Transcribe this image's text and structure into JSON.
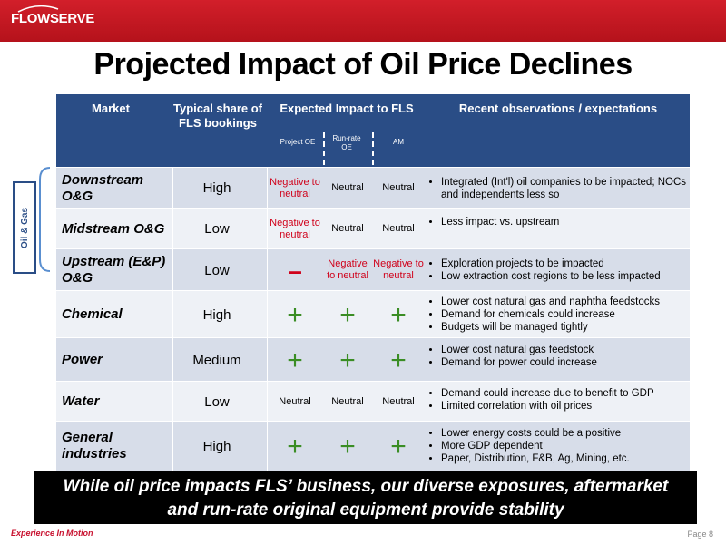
{
  "brand": {
    "logo": "FLOWSERVE",
    "tagline": "Experience In Motion",
    "page": "Page 8",
    "accent": "#c8102e",
    "header_blue": "#2a4d86",
    "positive_green": "#3a8d24"
  },
  "title": "Projected Impact of Oil Price Declines",
  "table": {
    "headers": {
      "market": "Market",
      "share": "Typical share of FLS bookings",
      "impact": "Expected Impact to FLS",
      "project_oe": "Project OE",
      "runrate_oe": "Run-rate OE",
      "am": "AM",
      "observations": "Recent observations / expectations"
    },
    "group_label": "Oil & Gas",
    "rows": [
      {
        "market": "Downstream O&G",
        "share": "High",
        "project_oe": "Negative to neutral",
        "runrate_oe": "Neutral",
        "am": "Neutral",
        "observations": [
          "Integrated (Int'l) oil companies to be impacted; NOCs and independents less so"
        ]
      },
      {
        "market": "Midstream O&G",
        "share": "Low",
        "project_oe": "Negative to neutral",
        "runrate_oe": "Neutral",
        "am": "Neutral",
        "observations": [
          "Less impact vs. upstream"
        ]
      },
      {
        "market": "Upstream (E&P) O&G",
        "share": "Low",
        "project_oe": "–",
        "runrate_oe": "Negative to neutral",
        "am": "Negative to neutral",
        "observations": [
          "Exploration projects to be impacted",
          "Low extraction cost regions to be less impacted"
        ]
      },
      {
        "market": "Chemical",
        "share": "High",
        "project_oe": "+",
        "runrate_oe": "+",
        "am": "+",
        "observations": [
          "Lower cost natural gas and naphtha feedstocks",
          "Demand for chemicals could increase",
          "Budgets will be managed tightly"
        ]
      },
      {
        "market": "Power",
        "share": "Medium",
        "project_oe": "+",
        "runrate_oe": "+",
        "am": "+",
        "observations": [
          "Lower cost natural gas feedstock",
          "Demand for power could increase"
        ]
      },
      {
        "market": "Water",
        "share": "Low",
        "project_oe": "Neutral",
        "runrate_oe": "Neutral",
        "am": "Neutral",
        "observations": [
          "Demand could increase due to benefit to GDP",
          "Limited correlation with oil prices"
        ]
      },
      {
        "market": "General industries",
        "share": "High",
        "project_oe": "+",
        "runrate_oe": "+",
        "am": "+",
        "observations": [
          "Lower energy costs could be a positive",
          "More GDP dependent",
          "Paper, Distribution, F&B, Ag, Mining, etc."
        ]
      }
    ]
  },
  "banner": {
    "line1": "While oil price impacts FLS’ business, our diverse exposures, aftermarket",
    "line2": "and run-rate original equipment provide stability"
  }
}
